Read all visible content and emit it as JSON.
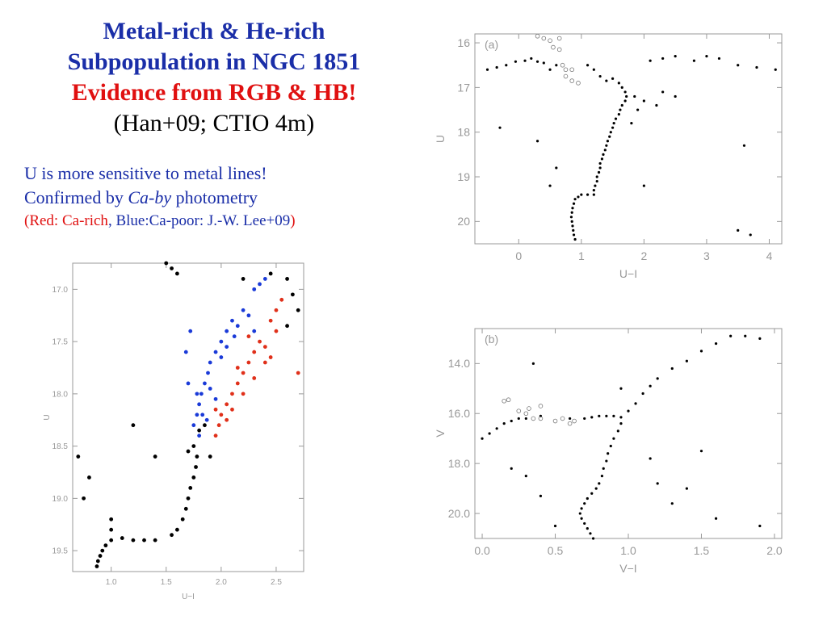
{
  "title": {
    "line1": "Metal-rich & He-rich",
    "line2": "Subpopulation in NGC 1851",
    "line3": "Evidence from RGB & HB!",
    "line4": "(Han+09; CTIO 4m)"
  },
  "notes": {
    "line1": "U is more sensitive to metal lines!",
    "line2_prefix": "Confirmed by ",
    "line2_italic": "Ca-by",
    "line2_suffix": " photometry",
    "line3_open": "(",
    "line3_red": "Red: Ca-rich",
    "line3_comma": ",",
    "line3_blue": " Blue:Ca-poor: J.-W. Lee+09",
    "line3_close": ")"
  },
  "colors": {
    "title_blue": "#1a2ea8",
    "accent_red": "#e01010",
    "ca_rich": "#e0301a",
    "ca_poor": "#1a3ad8",
    "axis_gray": "#999999"
  },
  "chart_data": [
    {
      "id": "a",
      "type": "scatter",
      "panel_label": "(a)",
      "xlabel": "U−I",
      "ylabel": "U",
      "xlim": [
        -0.7,
        4.2
      ],
      "ylim": [
        20.5,
        15.8
      ],
      "xticks": [
        0,
        1,
        2,
        3,
        4
      ],
      "yticks": [
        16,
        17,
        18,
        19,
        20
      ],
      "series": [
        {
          "role": "stars",
          "points": [
            [
              -0.5,
              16.6
            ],
            [
              -0.35,
              16.55
            ],
            [
              -0.2,
              16.5
            ],
            [
              -0.05,
              16.42
            ],
            [
              0.1,
              16.4
            ],
            [
              0.2,
              16.35
            ],
            [
              0.3,
              16.42
            ],
            [
              0.4,
              16.45
            ],
            [
              0.5,
              16.6
            ],
            [
              0.6,
              16.5
            ],
            [
              1.1,
              16.5
            ],
            [
              1.2,
              16.6
            ],
            [
              1.3,
              16.75
            ],
            [
              1.4,
              16.85
            ],
            [
              1.5,
              16.8
            ],
            [
              2.1,
              16.4
            ],
            [
              2.3,
              16.35
            ],
            [
              2.5,
              16.3
            ],
            [
              2.8,
              16.4
            ],
            [
              3.0,
              16.3
            ],
            [
              3.2,
              16.35
            ],
            [
              3.5,
              16.5
            ],
            [
              3.8,
              16.55
            ],
            [
              4.1,
              16.6
            ],
            [
              1.6,
              16.9
            ],
            [
              1.65,
              17.0
            ],
            [
              1.7,
              17.1
            ],
            [
              1.72,
              17.2
            ],
            [
              1.7,
              17.3
            ],
            [
              1.65,
              17.4
            ],
            [
              1.62,
              17.5
            ],
            [
              1.6,
              17.6
            ],
            [
              1.55,
              17.7
            ],
            [
              1.52,
              17.8
            ],
            [
              1.5,
              17.9
            ],
            [
              1.47,
              18.0
            ],
            [
              1.45,
              18.1
            ],
            [
              1.42,
              18.2
            ],
            [
              1.4,
              18.3
            ],
            [
              1.38,
              18.4
            ],
            [
              1.35,
              18.5
            ],
            [
              1.33,
              18.6
            ],
            [
              1.3,
              18.7
            ],
            [
              1.3,
              18.8
            ],
            [
              1.28,
              18.9
            ],
            [
              1.25,
              19.0
            ],
            [
              1.25,
              19.1
            ],
            [
              1.22,
              19.2
            ],
            [
              1.2,
              19.3
            ],
            [
              1.2,
              19.4
            ],
            [
              1.1,
              19.4
            ],
            [
              1.0,
              19.4
            ],
            [
              0.95,
              19.45
            ],
            [
              0.9,
              19.5
            ],
            [
              0.88,
              19.6
            ],
            [
              0.86,
              19.7
            ],
            [
              0.85,
              19.8
            ],
            [
              0.84,
              19.9
            ],
            [
              0.85,
              20.0
            ],
            [
              0.86,
              20.1
            ],
            [
              0.87,
              20.2
            ],
            [
              0.88,
              20.3
            ],
            [
              0.9,
              20.4
            ],
            [
              0.3,
              18.2
            ],
            [
              -0.3,
              17.9
            ],
            [
              3.6,
              18.3
            ],
            [
              3.5,
              20.2
            ],
            [
              3.7,
              20.3
            ],
            [
              0.6,
              18.8
            ],
            [
              0.5,
              19.2
            ],
            [
              2.0,
              19.2
            ],
            [
              1.8,
              17.8
            ],
            [
              1.9,
              17.5
            ],
            [
              2.2,
              17.4
            ],
            [
              2.0,
              17.3
            ],
            [
              1.85,
              17.2
            ],
            [
              2.3,
              17.1
            ],
            [
              2.5,
              17.2
            ]
          ]
        },
        {
          "role": "open-circles",
          "points": [
            [
              0.3,
              15.85
            ],
            [
              0.4,
              15.9
            ],
            [
              0.5,
              15.95
            ],
            [
              0.65,
              15.9
            ],
            [
              0.55,
              16.1
            ],
            [
              0.65,
              16.15
            ],
            [
              0.7,
              16.5
            ],
            [
              0.75,
              16.6
            ],
            [
              0.85,
              16.6
            ],
            [
              0.75,
              16.75
            ],
            [
              0.85,
              16.85
            ],
            [
              0.95,
              16.9
            ]
          ]
        }
      ]
    },
    {
      "id": "b",
      "type": "scatter",
      "panel_label": "(b)",
      "xlabel": "V−I",
      "ylabel": "V",
      "xlim": [
        -0.05,
        2.05
      ],
      "ylim": [
        21.0,
        12.6
      ],
      "xticks": [
        0.0,
        0.5,
        1.0,
        1.5,
        2.0
      ],
      "yticks": [
        14,
        16,
        18,
        20
      ],
      "series": [
        {
          "role": "stars",
          "points": [
            [
              0.0,
              17.0
            ],
            [
              0.05,
              16.8
            ],
            [
              0.1,
              16.6
            ],
            [
              0.15,
              16.4
            ],
            [
              0.2,
              16.3
            ],
            [
              0.25,
              16.2
            ],
            [
              0.3,
              16.2
            ],
            [
              0.4,
              16.1
            ],
            [
              0.6,
              16.2
            ],
            [
              0.7,
              16.2
            ],
            [
              0.75,
              16.15
            ],
            [
              0.8,
              16.1
            ],
            [
              0.85,
              16.1
            ],
            [
              0.9,
              16.1
            ],
            [
              0.95,
              16.15
            ],
            [
              1.0,
              15.9
            ],
            [
              1.05,
              15.6
            ],
            [
              1.1,
              15.2
            ],
            [
              1.15,
              14.9
            ],
            [
              1.2,
              14.6
            ],
            [
              1.3,
              14.2
            ],
            [
              1.4,
              13.9
            ],
            [
              1.5,
              13.5
            ],
            [
              1.6,
              13.2
            ],
            [
              1.7,
              12.9
            ],
            [
              1.8,
              12.9
            ],
            [
              1.9,
              13.0
            ],
            [
              0.95,
              16.4
            ],
            [
              0.93,
              16.7
            ],
            [
              0.9,
              17.0
            ],
            [
              0.88,
              17.3
            ],
            [
              0.86,
              17.6
            ],
            [
              0.85,
              17.9
            ],
            [
              0.83,
              18.2
            ],
            [
              0.82,
              18.5
            ],
            [
              0.8,
              18.8
            ],
            [
              0.78,
              19.0
            ],
            [
              0.75,
              19.2
            ],
            [
              0.72,
              19.4
            ],
            [
              0.7,
              19.6
            ],
            [
              0.68,
              19.8
            ],
            [
              0.67,
              20.0
            ],
            [
              0.68,
              20.2
            ],
            [
              0.7,
              20.4
            ],
            [
              0.72,
              20.6
            ],
            [
              0.74,
              20.8
            ],
            [
              0.76,
              21.0
            ],
            [
              0.3,
              18.5
            ],
            [
              0.4,
              19.3
            ],
            [
              0.5,
              20.5
            ],
            [
              1.2,
              18.8
            ],
            [
              1.3,
              19.6
            ],
            [
              1.5,
              17.5
            ],
            [
              1.6,
              20.2
            ],
            [
              1.9,
              20.5
            ],
            [
              0.2,
              18.2
            ],
            [
              1.4,
              19.0
            ],
            [
              0.35,
              14.0
            ],
            [
              0.95,
              15.0
            ],
            [
              1.15,
              17.8
            ]
          ]
        },
        {
          "role": "open-circles",
          "points": [
            [
              0.15,
              15.5
            ],
            [
              0.18,
              15.45
            ],
            [
              0.25,
              15.9
            ],
            [
              0.3,
              16.0
            ],
            [
              0.32,
              15.8
            ],
            [
              0.35,
              16.2
            ],
            [
              0.4,
              15.7
            ],
            [
              0.4,
              16.2
            ],
            [
              0.5,
              16.3
            ],
            [
              0.55,
              16.2
            ],
            [
              0.6,
              16.4
            ],
            [
              0.63,
              16.3
            ]
          ]
        }
      ]
    },
    {
      "id": "c",
      "type": "scatter",
      "xlabel": "U−I",
      "ylabel": "U",
      "xlim": [
        0.65,
        2.75
      ],
      "ylim": [
        19.7,
        16.75
      ],
      "xticks": [
        1.0,
        1.5,
        2.0,
        2.5
      ],
      "yticks": [
        17.0,
        17.5,
        18.0,
        18.5,
        19.0,
        19.5
      ],
      "series": [
        {
          "name": "Ca-rich",
          "color": "#e0301a",
          "points": [
            [
              2.4,
              17.55
            ],
            [
              2.35,
              17.5
            ],
            [
              2.3,
              17.6
            ],
            [
              2.25,
              17.7
            ],
            [
              2.2,
              17.8
            ],
            [
              2.15,
              17.9
            ],
            [
              2.1,
              18.0
            ],
            [
              2.05,
              18.1
            ],
            [
              2.0,
              18.2
            ],
            [
              1.98,
              18.3
            ],
            [
              1.95,
              18.4
            ],
            [
              2.45,
              17.3
            ],
            [
              2.5,
              17.2
            ],
            [
              2.55,
              17.1
            ],
            [
              2.5,
              17.4
            ],
            [
              2.4,
              17.7
            ],
            [
              2.3,
              17.85
            ],
            [
              2.2,
              18.0
            ],
            [
              2.1,
              18.15
            ],
            [
              2.7,
              17.8
            ],
            [
              2.25,
              17.45
            ],
            [
              2.45,
              17.65
            ],
            [
              2.15,
              17.75
            ],
            [
              2.05,
              18.25
            ],
            [
              1.95,
              18.15
            ]
          ]
        },
        {
          "name": "Ca-poor",
          "color": "#1a3ad8",
          "points": [
            [
              2.2,
              17.2
            ],
            [
              2.1,
              17.3
            ],
            [
              2.05,
              17.4
            ],
            [
              2.0,
              17.5
            ],
            [
              1.95,
              17.6
            ],
            [
              1.9,
              17.7
            ],
            [
              1.88,
              17.8
            ],
            [
              1.85,
              17.9
            ],
            [
              1.82,
              18.0
            ],
            [
              1.8,
              18.1
            ],
            [
              1.78,
              18.2
            ],
            [
              1.75,
              18.3
            ],
            [
              1.8,
              18.4
            ],
            [
              2.3,
              17.0
            ],
            [
              2.35,
              16.95
            ],
            [
              2.4,
              16.9
            ],
            [
              2.15,
              17.35
            ],
            [
              2.0,
              17.65
            ],
            [
              1.9,
              17.95
            ],
            [
              1.83,
              18.2
            ],
            [
              1.7,
              17.9
            ],
            [
              1.68,
              17.6
            ],
            [
              1.72,
              17.4
            ],
            [
              2.25,
              17.25
            ],
            [
              2.3,
              17.4
            ],
            [
              1.95,
              18.05
            ],
            [
              1.87,
              18.25
            ],
            [
              2.05,
              17.55
            ],
            [
              2.12,
              17.45
            ],
            [
              1.78,
              18.0
            ]
          ]
        },
        {
          "name": "",
          "color": "#000000",
          "points": [
            [
              1.5,
              16.75
            ],
            [
              1.55,
              16.8
            ],
            [
              1.6,
              16.85
            ],
            [
              1.75,
              18.5
            ],
            [
              1.78,
              18.6
            ],
            [
              1.77,
              18.7
            ],
            [
              1.75,
              18.8
            ],
            [
              1.72,
              18.9
            ],
            [
              1.7,
              19.0
            ],
            [
              1.68,
              19.1
            ],
            [
              1.65,
              19.2
            ],
            [
              1.6,
              19.3
            ],
            [
              1.55,
              19.35
            ],
            [
              1.4,
              19.4
            ],
            [
              1.3,
              19.4
            ],
            [
              1.2,
              19.4
            ],
            [
              1.1,
              19.38
            ],
            [
              1.0,
              19.4
            ],
            [
              0.95,
              19.45
            ],
            [
              0.92,
              19.5
            ],
            [
              0.9,
              19.55
            ],
            [
              0.88,
              19.6
            ],
            [
              0.87,
              19.65
            ],
            [
              1.0,
              19.3
            ],
            [
              0.7,
              18.6
            ],
            [
              0.8,
              18.8
            ],
            [
              0.75,
              19.0
            ],
            [
              1.2,
              18.3
            ],
            [
              1.4,
              18.6
            ],
            [
              1.0,
              19.2
            ],
            [
              1.9,
              18.6
            ],
            [
              1.85,
              18.3
            ],
            [
              2.2,
              16.9
            ],
            [
              2.45,
              16.85
            ],
            [
              2.6,
              16.9
            ],
            [
              2.65,
              17.05
            ],
            [
              2.7,
              17.2
            ],
            [
              2.6,
              17.35
            ],
            [
              1.8,
              18.35
            ],
            [
              1.7,
              18.55
            ]
          ]
        }
      ]
    }
  ]
}
